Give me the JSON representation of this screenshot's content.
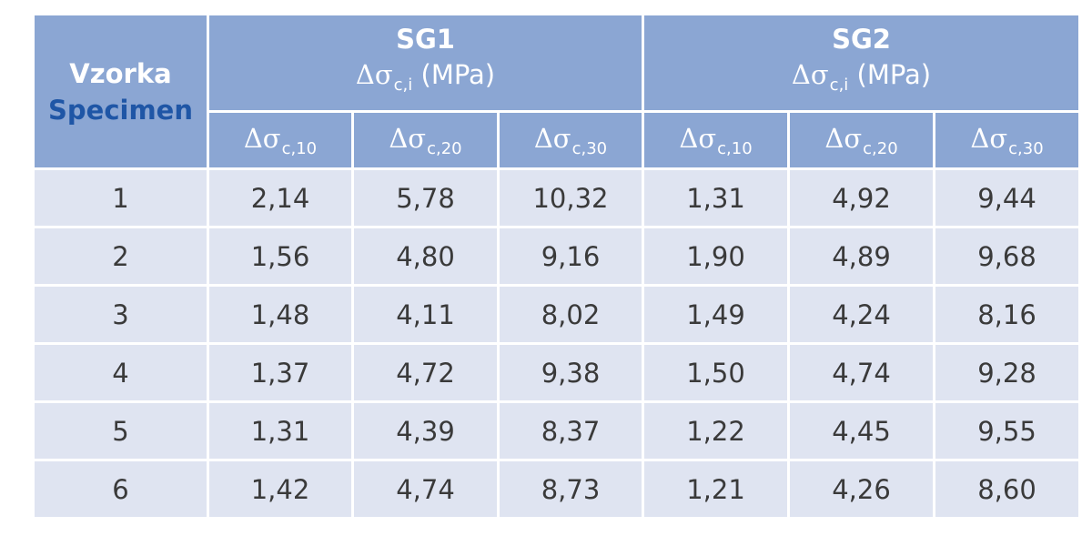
{
  "header": {
    "col0_cz": "Vzorka",
    "col0_en": "Specimen",
    "groups": [
      {
        "title": "SG1",
        "symbol": "Δσ",
        "sub": "c,i",
        "unit": "(MPa)"
      },
      {
        "title": "SG2",
        "symbol": "Δσ",
        "sub": "c,i",
        "unit": "(MPa)"
      }
    ],
    "subcols": [
      {
        "symbol": "Δσ",
        "sub": "c,10"
      },
      {
        "symbol": "Δσ",
        "sub": "c,20"
      },
      {
        "symbol": "Δσ",
        "sub": "c,30"
      },
      {
        "symbol": "Δσ",
        "sub": "c,10"
      },
      {
        "symbol": "Δσ",
        "sub": "c,20"
      },
      {
        "symbol": "Δσ",
        "sub": "c,30"
      }
    ]
  },
  "rows": [
    [
      "1",
      "2,14",
      "5,78",
      "10,32",
      "1,31",
      "4,92",
      "9,44"
    ],
    [
      "2",
      "1,56",
      "4,80",
      "9,16",
      "1,90",
      "4,89",
      "9,68"
    ],
    [
      "3",
      "1,48",
      "4,11",
      "8,02",
      "1,49",
      "4,24",
      "8,16"
    ],
    [
      "4",
      "1,37",
      "4,72",
      "9,38",
      "1,50",
      "4,74",
      "9,28"
    ],
    [
      "5",
      "1,31",
      "4,39",
      "8,37",
      "1,22",
      "4,45",
      "9,55"
    ],
    [
      "6",
      "1,42",
      "4,74",
      "8,73",
      "1,21",
      "4,26",
      "8,60"
    ]
  ],
  "colors": {
    "header_bg": "#8ba6d3",
    "body_bg": "#dfe4f1",
    "english_label": "#1f56a6",
    "text": "#3a3a3a"
  }
}
